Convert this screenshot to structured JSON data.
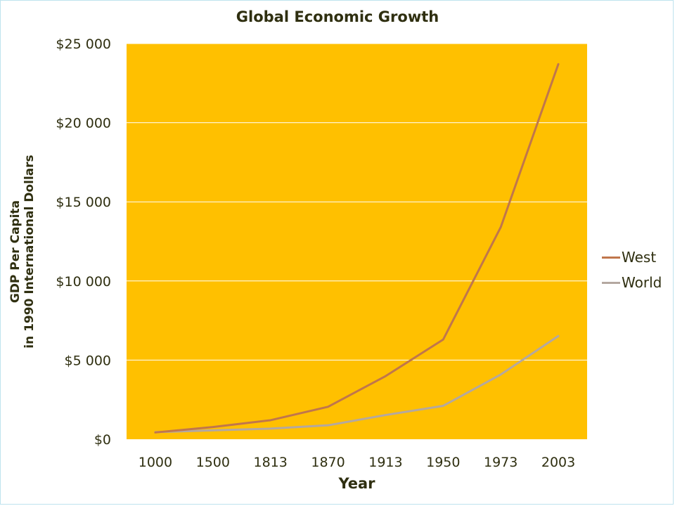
{
  "chart_data": {
    "type": "line",
    "title": "Global Economic Growth",
    "xlabel": "Year",
    "ylabel_lines": [
      "GDP Per Capita",
      "in 1990 International Dollars"
    ],
    "categories": [
      "1000",
      "1500",
      "1813",
      "1870",
      "1913",
      "1950",
      "1973",
      "2003"
    ],
    "ylim": [
      0,
      25000
    ],
    "yticks": [
      {
        "value": 0,
        "label": "$0"
      },
      {
        "value": 5000,
        "label": "$5 000"
      },
      {
        "value": 10000,
        "label": "$10 000"
      },
      {
        "value": 15000,
        "label": "$15 000"
      },
      {
        "value": 20000,
        "label": "$20 000"
      },
      {
        "value": 25000,
        "label": "$25 000"
      }
    ],
    "grid": true,
    "legend_position": "right",
    "plot_background": "#ffc000",
    "series": [
      {
        "name": "West",
        "color": "#c0764c",
        "values": [
          430,
          770,
          1200,
          2050,
          3990,
          6300,
          13400,
          23700
        ]
      },
      {
        "name": "World",
        "color": "#b4a8a0",
        "values": [
          450,
          560,
          670,
          880,
          1530,
          2110,
          4090,
          6520
        ]
      }
    ]
  }
}
